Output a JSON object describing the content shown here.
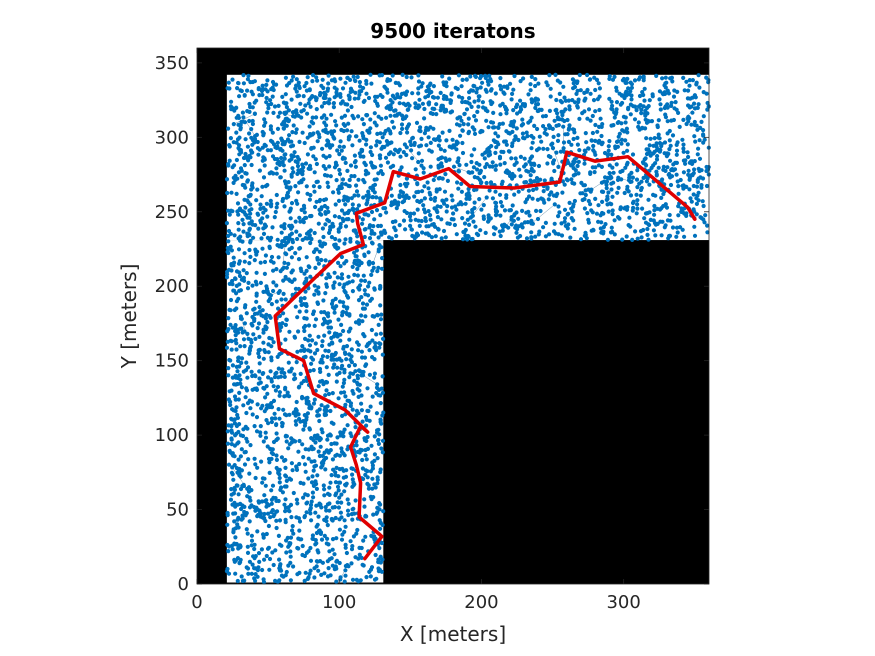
{
  "chart_data": {
    "type": "scatter",
    "title": "9500 iteratons",
    "xlabel": "X [meters]",
    "ylabel": "Y [meters]",
    "xlim": [
      0,
      360
    ],
    "ylim": [
      0,
      360
    ],
    "xticks": [
      0,
      100,
      200,
      300
    ],
    "yticks": [
      0,
      50,
      100,
      150,
      200,
      250,
      300,
      350
    ],
    "xtick_labels": [
      "0",
      "100",
      "200",
      "300"
    ],
    "ytick_labels": [
      "0",
      "50",
      "100",
      "150",
      "200",
      "250",
      "300",
      "350"
    ],
    "grid": false,
    "legend": "none",
    "obstacle_color": "#000000",
    "sample_color": "#0072BD",
    "path_color": "#E00000",
    "free_space": {
      "vertical_corridor": {
        "x": [
          21,
          131
        ],
        "y": [
          1,
          231
        ]
      },
      "horizontal_corridor": {
        "x": [
          21,
          360
        ],
        "y": [
          231,
          342
        ]
      }
    },
    "sample_count": 9500,
    "path": {
      "x": [
        118,
        130,
        114,
        115,
        112,
        108,
        115,
        120,
        104,
        82,
        75,
        58,
        55,
        80,
        101,
        117,
        113,
        112,
        132,
        138,
        157,
        177,
        192,
        223,
        255,
        260,
        280,
        303,
        345,
        350
      ],
      "y": [
        17,
        32,
        45,
        68,
        80,
        92,
        106,
        102,
        117,
        128,
        150,
        158,
        180,
        203,
        222,
        228,
        242,
        249,
        256,
        277,
        272,
        279,
        267,
        266,
        270,
        290,
        284,
        287,
        253,
        245
      ]
    }
  }
}
